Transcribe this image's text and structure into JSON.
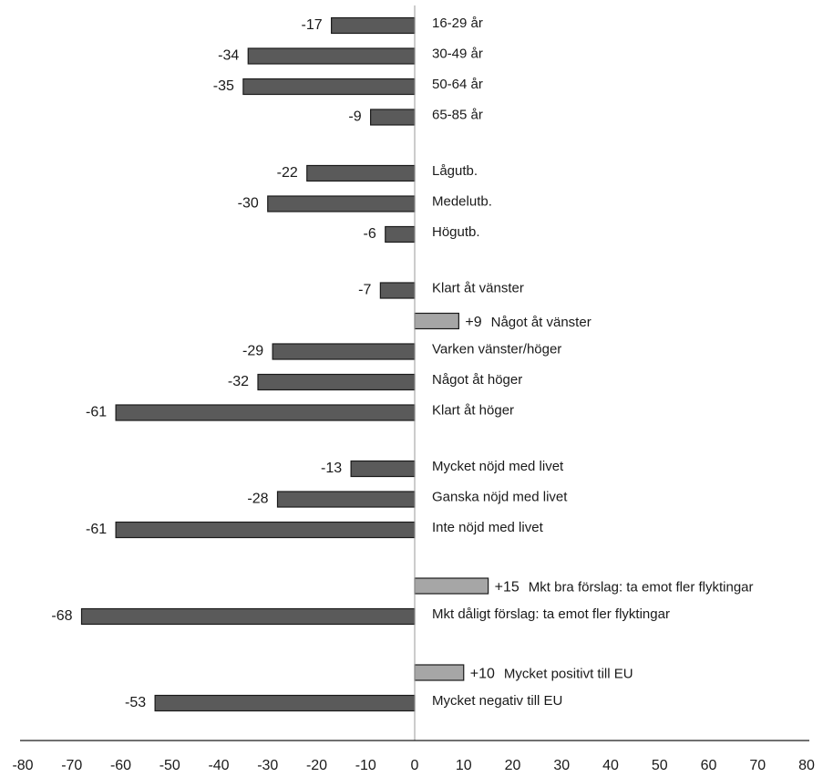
{
  "chart_data": {
    "type": "bar",
    "orientation": "horizontal",
    "xlim": [
      -80,
      80
    ],
    "x_ticks": [
      -80,
      -70,
      -60,
      -50,
      -40,
      -30,
      -20,
      -10,
      0,
      10,
      20,
      30,
      40,
      50,
      60,
      70,
      80
    ],
    "grid": false,
    "colors": {
      "negative": "#5a5a5a",
      "positive": "#a6a6a6",
      "edge": "#1a1a1a",
      "zero_line": "#999999",
      "axis": "#1a1a1a"
    },
    "groups": [
      {
        "items": [
          {
            "category": "16-29 år",
            "value": -17,
            "label": "-17"
          },
          {
            "category": "30-49 år",
            "value": -34,
            "label": "-34"
          },
          {
            "category": "50-64 år",
            "value": -35,
            "label": "-35"
          },
          {
            "category": "65-85 år",
            "value": -9,
            "label": "-9"
          }
        ]
      },
      {
        "items": [
          {
            "category": "Lågutb.",
            "value": -22,
            "label": "-22"
          },
          {
            "category": "Medelutb.",
            "value": -30,
            "label": "-30"
          },
          {
            "category": "Högutb.",
            "value": -6,
            "label": "-6"
          }
        ]
      },
      {
        "items": [
          {
            "category": "Klart åt vänster",
            "value": -7,
            "label": "-7"
          },
          {
            "category": "Något åt vänster",
            "value": 9,
            "label": "+9"
          },
          {
            "category": "Varken vänster/höger",
            "value": -29,
            "label": "-29"
          },
          {
            "category": "Något åt höger",
            "value": -32,
            "label": "-32"
          },
          {
            "category": "Klart åt höger",
            "value": -61,
            "label": "-61"
          }
        ]
      },
      {
        "items": [
          {
            "category": "Mycket nöjd med livet",
            "value": -13,
            "label": "-13"
          },
          {
            "category": "Ganska nöjd med livet",
            "value": -28,
            "label": "-28"
          },
          {
            "category": "Inte nöjd med livet",
            "value": -61,
            "label": "-61"
          }
        ]
      },
      {
        "items": [
          {
            "category": "Mkt bra förslag: ta emot fler flyktingar",
            "value": 15,
            "label": "+15"
          },
          {
            "category": "Mkt  dåligt förslag: ta emot fler flyktingar",
            "value": -68,
            "label": "-68"
          }
        ]
      },
      {
        "items": [
          {
            "category": "Mycket positivt till EU",
            "value": 10,
            "label": "+10"
          },
          {
            "category": "Mycket negativ till EU",
            "value": -53,
            "label": "-53"
          }
        ]
      }
    ]
  }
}
